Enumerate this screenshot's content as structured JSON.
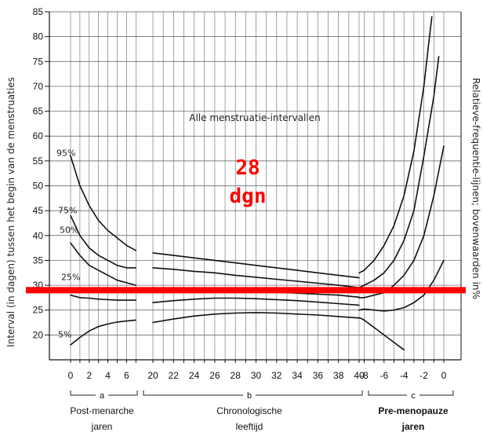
{
  "chart_data": {
    "type": "line",
    "title": "Alle menstruatie-intervallen",
    "ylabel": "Interval (in dagen) tussen het begin van de menstruaties",
    "right_label": "Relatieve-frequentie-lijnen; bovenwaarden in%",
    "ylim": [
      15,
      85
    ],
    "yticks": [
      20,
      25,
      30,
      35,
      40,
      45,
      50,
      55,
      60,
      65,
      70,
      75,
      80,
      85
    ],
    "grid": true,
    "sections": [
      {
        "id": "a",
        "letter": "a",
        "name": "Post-menarche",
        "unit": "jaren",
        "bold": false,
        "ticks": [
          "0",
          "2",
          "4",
          "6"
        ]
      },
      {
        "id": "b",
        "letter": "b",
        "name": "Chronologische",
        "unit": "leeftijd",
        "bold": false,
        "ticks": [
          "20",
          "22",
          "24",
          "26",
          "28",
          "30",
          "32",
          "34",
          "36",
          "38",
          "40"
        ]
      },
      {
        "id": "c",
        "letter": "c",
        "name": "Pre-menopauze",
        "unit": "jaren",
        "bold": true,
        "ticks": [
          "-8",
          "-6",
          "-4",
          "-2",
          "0"
        ]
      }
    ],
    "percentile_labels": [
      "95%",
      "75%",
      "50%",
      "25%",
      "5%"
    ],
    "series": [
      {
        "name": "95%",
        "a": [
          [
            0,
            56
          ],
          [
            1,
            50
          ],
          [
            2,
            46
          ],
          [
            3,
            43
          ],
          [
            4,
            41
          ],
          [
            5,
            39.5
          ],
          [
            6,
            38
          ],
          [
            7,
            37
          ]
        ],
        "b": [
          [
            20,
            36.5
          ],
          [
            22,
            36
          ],
          [
            24,
            35.5
          ],
          [
            26,
            35
          ],
          [
            28,
            34.5
          ],
          [
            30,
            34
          ],
          [
            32,
            33.5
          ],
          [
            34,
            33
          ],
          [
            36,
            32.5
          ],
          [
            38,
            32
          ],
          [
            40,
            31.5
          ]
        ],
        "c": [
          [
            -8.5,
            32.5
          ],
          [
            -8,
            33
          ],
          [
            -7,
            35
          ],
          [
            -6,
            38
          ],
          [
            -5,
            42
          ],
          [
            -4,
            48
          ],
          [
            -3,
            57
          ],
          [
            -2,
            70
          ],
          [
            -1.5,
            79
          ],
          [
            -1.2,
            84
          ]
        ]
      },
      {
        "name": "75%",
        "a": [
          [
            0,
            44
          ],
          [
            1,
            40
          ],
          [
            2,
            37.5
          ],
          [
            3,
            36
          ],
          [
            4,
            35
          ],
          [
            5,
            34
          ],
          [
            6,
            33.5
          ],
          [
            7,
            33.5
          ]
        ],
        "b": [
          [
            20,
            33.5
          ],
          [
            22,
            33.2
          ],
          [
            24,
            32.8
          ],
          [
            26,
            32.5
          ],
          [
            28,
            32
          ],
          [
            30,
            31.6
          ],
          [
            32,
            31.2
          ],
          [
            34,
            30.8
          ],
          [
            36,
            30.4
          ],
          [
            38,
            30
          ],
          [
            40,
            29.5
          ]
        ],
        "c": [
          [
            -8.5,
            29.5
          ],
          [
            -8,
            30
          ],
          [
            -7,
            31
          ],
          [
            -6,
            32.5
          ],
          [
            -5,
            35
          ],
          [
            -4,
            39
          ],
          [
            -3,
            45
          ],
          [
            -2,
            56
          ],
          [
            -1,
            68
          ],
          [
            -0.5,
            76
          ]
        ]
      },
      {
        "name": "50%",
        "a": [
          [
            0,
            38.5
          ],
          [
            1,
            36
          ],
          [
            2,
            34
          ],
          [
            3,
            33
          ],
          [
            4,
            32
          ],
          [
            5,
            31
          ],
          [
            6,
            30.5
          ],
          [
            7,
            30
          ]
        ],
        "b": [
          [
            20,
            29.5
          ],
          [
            22,
            29.4
          ],
          [
            24,
            29.3
          ],
          [
            26,
            29.2
          ],
          [
            28,
            29
          ],
          [
            30,
            28.8
          ],
          [
            32,
            28.6
          ],
          [
            34,
            28.4
          ],
          [
            36,
            28.2
          ],
          [
            38,
            28
          ],
          [
            40,
            27.6
          ]
        ],
        "c": [
          [
            -8.5,
            27.5
          ],
          [
            -8,
            27.5
          ],
          [
            -7,
            28
          ],
          [
            -6,
            28.5
          ],
          [
            -5,
            30
          ],
          [
            -4,
            32
          ],
          [
            -3,
            35
          ],
          [
            -2,
            40
          ],
          [
            -1,
            48
          ],
          [
            0,
            58
          ]
        ]
      },
      {
        "name": "25%",
        "a": [
          [
            0,
            28
          ],
          [
            1,
            27.5
          ],
          [
            2,
            27.4
          ],
          [
            3,
            27.2
          ],
          [
            4,
            27.1
          ],
          [
            5,
            27
          ],
          [
            6,
            27
          ],
          [
            7,
            27
          ]
        ],
        "b": [
          [
            20,
            26.5
          ],
          [
            22,
            26.9
          ],
          [
            24,
            27.2
          ],
          [
            26,
            27.4
          ],
          [
            28,
            27.4
          ],
          [
            30,
            27.3
          ],
          [
            32,
            27.1
          ],
          [
            34,
            26.9
          ],
          [
            36,
            26.6
          ],
          [
            38,
            26.3
          ],
          [
            40,
            26
          ]
        ],
        "c": [
          [
            -8.5,
            25
          ],
          [
            -8,
            25.2
          ],
          [
            -7,
            25
          ],
          [
            -6,
            24.8
          ],
          [
            -5,
            25
          ],
          [
            -4,
            25.5
          ],
          [
            -3,
            26.5
          ],
          [
            -2,
            28
          ],
          [
            -1,
            31
          ],
          [
            0,
            35
          ]
        ]
      },
      {
        "name": "5%",
        "a": [
          [
            0,
            18
          ],
          [
            1,
            19.5
          ],
          [
            2,
            20.8
          ],
          [
            3,
            21.7
          ],
          [
            4,
            22.2
          ],
          [
            5,
            22.6
          ],
          [
            6,
            22.8
          ],
          [
            7,
            23
          ]
        ],
        "b": [
          [
            20,
            22.5
          ],
          [
            22,
            23.2
          ],
          [
            24,
            23.8
          ],
          [
            26,
            24.2
          ],
          [
            28,
            24.4
          ],
          [
            30,
            24.5
          ],
          [
            32,
            24.4
          ],
          [
            34,
            24.2
          ],
          [
            36,
            24
          ],
          [
            38,
            23.7
          ],
          [
            40,
            23.4
          ]
        ],
        "c": [
          [
            -8.5,
            23.5
          ],
          [
            -8,
            23
          ],
          [
            -7,
            21.5
          ],
          [
            -6,
            20
          ],
          [
            -5,
            18.5
          ],
          [
            -4,
            17
          ]
        ]
      }
    ],
    "reference_line": {
      "value": 29,
      "color": "#ff0000"
    },
    "annotation": {
      "lines": [
        "28",
        "dgn"
      ],
      "color": "#ff0000"
    }
  }
}
